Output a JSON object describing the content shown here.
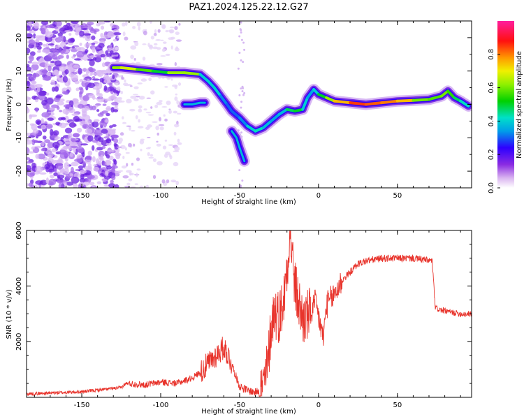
{
  "figure": {
    "title": "PAZ1.2024.125.22.12.G27"
  },
  "chart_data": [
    {
      "type": "heatmap",
      "title": "",
      "xlabel": "Height of straight line (km)",
      "ylabel": "Frequency (Hz)",
      "xlim": [
        -185,
        97
      ],
      "ylim": [
        -25,
        25
      ],
      "xticks": [
        -150,
        -100,
        -50,
        0,
        50
      ],
      "yticks": [
        -20,
        -10,
        0,
        10,
        20
      ],
      "colorbar": {
        "label": "Normalized spectral amplitude",
        "range": [
          0,
          1
        ],
        "ticks": [
          0.0,
          0.2,
          0.4,
          0.6,
          0.8
        ],
        "colormap": "gist_ncar-like (white → violet → blue → cyan → green → yellow → red → pink)"
      },
      "ridge": {
        "name": "main frequency track",
        "x": [
          -130,
          -125,
          -115,
          -105,
          -95,
          -85,
          -75,
          -70,
          -66,
          -62,
          -58,
          -55,
          -50,
          -45,
          -40,
          -35,
          -30,
          -25,
          -20,
          -15,
          -10,
          -7,
          -3,
          0,
          5,
          10,
          20,
          30,
          40,
          50,
          60,
          70,
          78,
          82,
          86,
          90,
          95
        ],
        "y": [
          11,
          11,
          10.5,
          10,
          9.5,
          9.5,
          9,
          7,
          5,
          2.5,
          0,
          -2,
          -4,
          -6.5,
          -8,
          -7,
          -5,
          -3,
          -1.5,
          -2,
          -1.5,
          2,
          4.5,
          3,
          2,
          1,
          0.5,
          0,
          0.5,
          1,
          1.2,
          1.5,
          2.5,
          4,
          2,
          1,
          -0.5
        ],
        "amplitude": [
          0.5,
          0.75,
          0.6,
          0.55,
          0.45,
          0.8,
          0.45,
          0.35,
          0.45,
          0.35,
          0.3,
          0.3,
          0.3,
          0.35,
          0.45,
          0.4,
          0.35,
          0.35,
          0.4,
          0.55,
          0.45,
          0.35,
          0.35,
          0.45,
          0.55,
          0.7,
          0.8,
          0.9,
          0.75,
          0.85,
          0.65,
          0.55,
          0.6,
          0.6,
          0.5,
          0.45,
          0.4
        ]
      },
      "secondary_branches": [
        {
          "x": [
            -85,
            -80,
            -75,
            -72
          ],
          "y": [
            0,
            0,
            0.5,
            0.5
          ]
        },
        {
          "x": [
            -55,
            -52,
            -50,
            -47
          ],
          "y": [
            -8,
            -10,
            -13,
            -17
          ]
        }
      ]
    },
    {
      "type": "line",
      "title": "",
      "xlabel": "Height of straight line (km)",
      "ylabel": "SNR (10 * v/v)",
      "xlim": [
        -185,
        97
      ],
      "ylim": [
        0,
        6000
      ],
      "xticks": [
        -150,
        -100,
        -50,
        0,
        50
      ],
      "yticks": [
        2000,
        4000,
        6000
      ],
      "color": "#e8332b",
      "series": [
        {
          "x": [
            -185,
            -150,
            -125,
            -122,
            -110,
            -100,
            -90,
            -80,
            -75,
            -70,
            -65,
            -60,
            -58,
            -55,
            -52,
            -50,
            -45,
            -40,
            -35,
            -32,
            -30,
            -28,
            -25,
            -22,
            -20,
            -18,
            -15,
            -10,
            -5,
            -2,
            0,
            3,
            5,
            10,
            15,
            20,
            25,
            30,
            40,
            50,
            60,
            72,
            74,
            80,
            90,
            97
          ],
          "y": [
            120,
            200,
            350,
            500,
            450,
            550,
            500,
            700,
            900,
            1200,
            1500,
            1800,
            1600,
            1200,
            700,
            400,
            250,
            180,
            350,
            1200,
            2600,
            3100,
            2900,
            3500,
            4700,
            6000,
            4000,
            2800,
            3000,
            3400,
            2900,
            2100,
            3300,
            3700,
            4200,
            4500,
            4800,
            4900,
            5000,
            5000,
            5000,
            4900,
            3200,
            3100,
            3000,
            3000
          ]
        }
      ]
    }
  ]
}
